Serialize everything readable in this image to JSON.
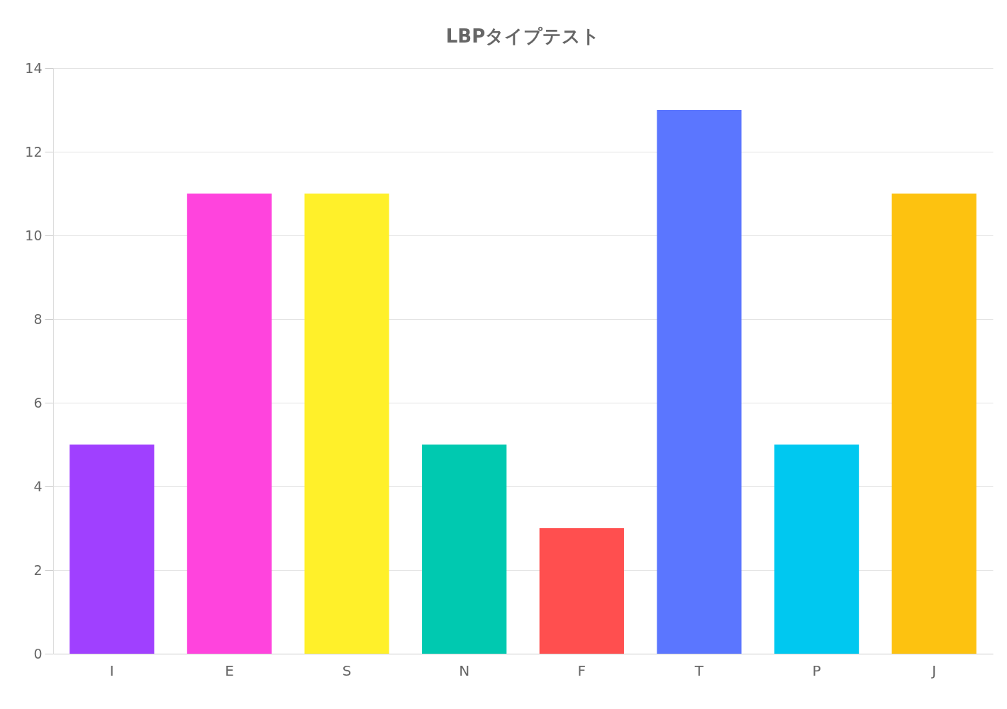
{
  "chart_data": {
    "type": "bar",
    "title": "LBPタイプテスト",
    "categories": [
      "I",
      "E",
      "S",
      "N",
      "F",
      "T",
      "P",
      "J"
    ],
    "values": [
      5,
      11,
      11,
      5,
      3,
      13,
      5,
      11
    ],
    "colors": [
      "#a040ff",
      "#ff44dd",
      "#fff02a",
      "#00c9b0",
      "#ff4f4f",
      "#5b76ff",
      "#00c8f0",
      "#fdc210"
    ],
    "ylim": [
      0,
      14
    ],
    "yticks": [
      0,
      2,
      4,
      6,
      8,
      10,
      12,
      14
    ],
    "grid": "y"
  }
}
